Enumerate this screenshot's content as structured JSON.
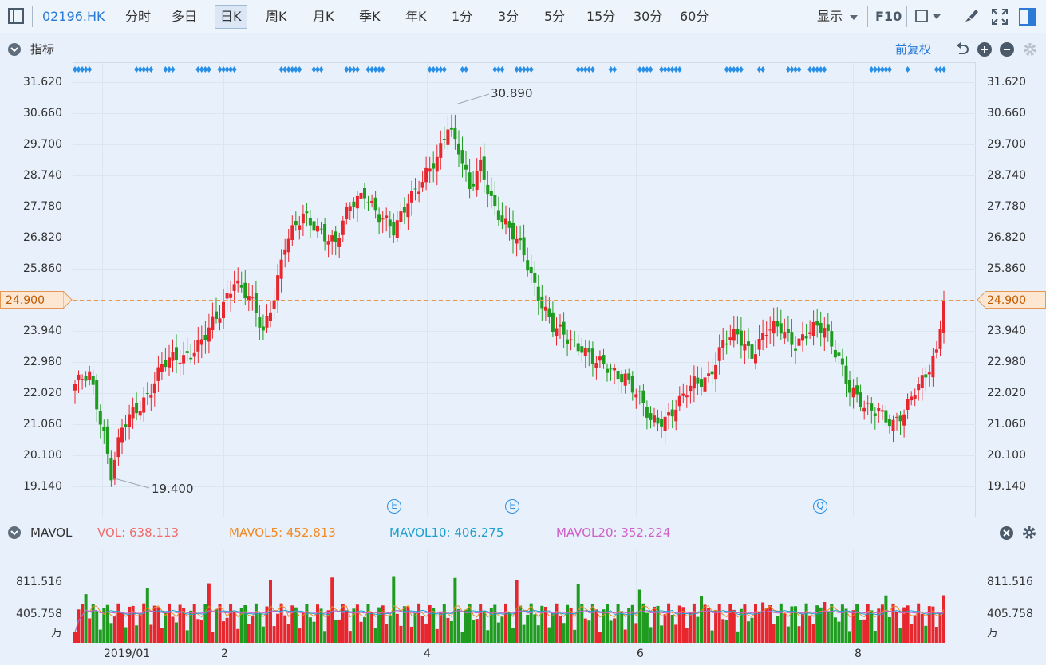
{
  "toolbar": {
    "symbol": "02196.HK",
    "periods": [
      "分时",
      "多日",
      "日K",
      "周K",
      "月K",
      "季K",
      "年K",
      "1分",
      "3分",
      "5分",
      "15分",
      "30分",
      "60分"
    ],
    "active_period": "日K",
    "display_label": "显示",
    "f10_label": "F10"
  },
  "indicator_bar": {
    "label": "指标",
    "adjust_label": "前复权"
  },
  "price_axis": {
    "ticks": [
      "31.620",
      "30.660",
      "29.700",
      "28.740",
      "27.780",
      "26.820",
      "25.860",
      "24.900",
      "23.940",
      "22.980",
      "22.020",
      "21.060",
      "20.100",
      "19.140"
    ],
    "current_price": "24.900"
  },
  "annotations": {
    "high": "30.890",
    "low": "19.400",
    "event_markers": [
      "E",
      "E",
      "Q"
    ]
  },
  "volume_panel": {
    "name": "MAVOL",
    "vol_label": "VOL:",
    "vol_value": "638.113",
    "mavol5_label": "MAVOL5:",
    "mavol5_value": "452.813",
    "mavol10_label": "MAVOL10:",
    "mavol10_value": "406.275",
    "mavol20_label": "MAVOL20:",
    "mavol20_value": "352.224",
    "ticks": [
      "811.516",
      "405.758"
    ],
    "unit": "万"
  },
  "x_axis": {
    "labels": [
      "2019/01",
      "2",
      "4",
      "6",
      "8"
    ]
  },
  "colors": {
    "up": "#e8262d",
    "down": "#1f9c1f",
    "vol_label": "#f06a6a",
    "mavol5": "#f08a24",
    "mavol10": "#1f9fd0",
    "mavol20": "#d05fc9",
    "price_line": "#e79750",
    "marker": "#2a8fe6"
  },
  "chart_data": {
    "type": "candlestick",
    "price_ylim": [
      19.14,
      31.62
    ],
    "high": 30.89,
    "low": 19.4,
    "last": 24.9,
    "volume_ylim_wan": [
      0,
      811.516
    ],
    "series": [
      {
        "name": "VOL",
        "last": 638.113
      },
      {
        "name": "MAVOL5",
        "last": 452.813
      },
      {
        "name": "MAVOL10",
        "last": 406.275
      },
      {
        "name": "MAVOL20",
        "last": 352.224
      }
    ]
  }
}
